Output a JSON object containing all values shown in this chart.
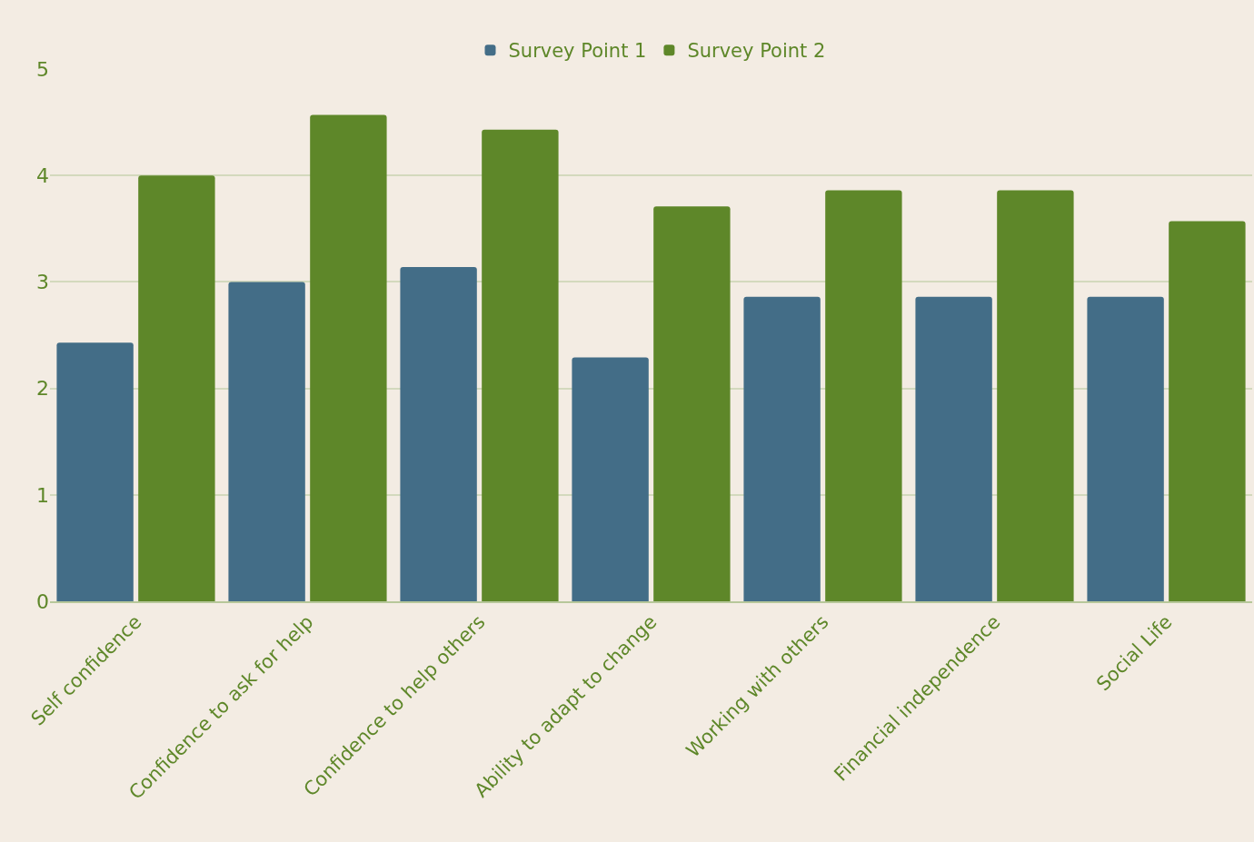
{
  "chart_data": {
    "type": "bar",
    "categories": [
      "Self confidence",
      "Confidence to ask for help",
      "Confidence to help others",
      "Ability to adapt to change",
      "Working with others",
      "Financial independence",
      "Social Life"
    ],
    "series": [
      {
        "name": "Survey Point 1",
        "color": "#436d87",
        "values": [
          2.43,
          3,
          3.14,
          2.29,
          2.86,
          2.86,
          2.86
        ]
      },
      {
        "name": "Survey Point 2",
        "color": "#5e8729",
        "values": [
          4,
          4.57,
          4.43,
          3.71,
          3.86,
          3.86,
          3.57
        ]
      }
    ],
    "ylim": [
      0,
      5
    ],
    "yticks": [
      0,
      1,
      2,
      3,
      4,
      5
    ],
    "grid": "y",
    "legend": "top"
  }
}
